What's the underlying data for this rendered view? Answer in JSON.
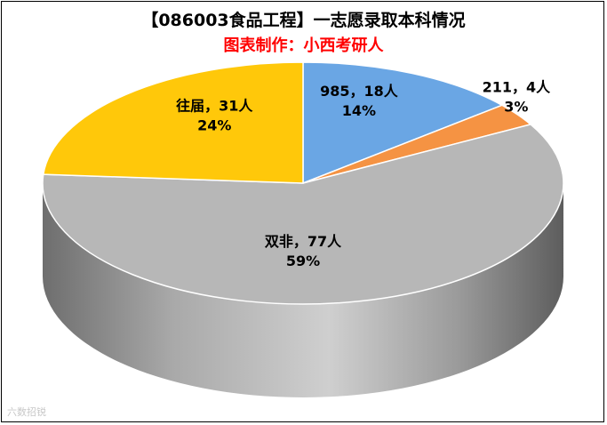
{
  "title": "【086003食品工程】一志愿录取本科情况",
  "subtitle": "图表制作：小西考研人",
  "watermark": "六数招锐",
  "chart_data": {
    "type": "pie",
    "title": "【086003食品工程】一志愿录取本科情况",
    "subtitle": "图表制作：小西考研人",
    "unit": "人",
    "slices": [
      {
        "name": "985",
        "value": 18,
        "percent": "14%",
        "color": "#6aa6e4",
        "label_count": "985，18人",
        "label_pct": "14%"
      },
      {
        "name": "211",
        "value": 4,
        "percent": "3%",
        "color": "#f59343",
        "label_count": "211，4人",
        "label_pct": "3%"
      },
      {
        "name": "双非",
        "value": 77,
        "percent": "59%",
        "color": "#b7b7b7",
        "label_count": "双非，77人",
        "label_pct": "59%"
      },
      {
        "name": "往届",
        "value": 31,
        "percent": "24%",
        "color": "#ffc80a",
        "label_count": "往届，31人",
        "label_pct": "24%"
      }
    ]
  }
}
